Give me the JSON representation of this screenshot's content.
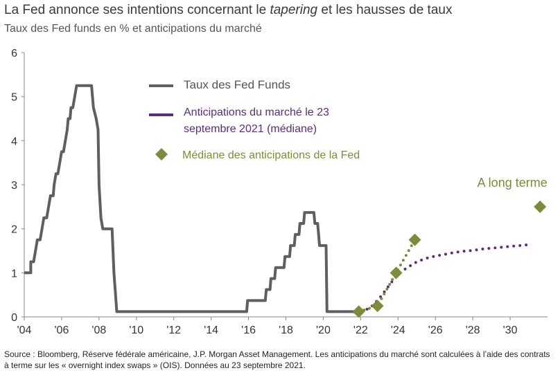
{
  "title": {
    "prefix": "La Fed annonce ses intentions concernant le ",
    "emph": "tapering",
    "suffix": " et les hausses de taux"
  },
  "subtitle": "Taux des Fed funds en % et anticipations du marché",
  "source": "Source : Bloomberg, Réserve fédérale américaine, J.P. Morgan Asset Management. Les anticipations du marché sont calculées à l’aide des contrats à terme sur les « overnight index swaps » (OIS). Données au 23 septembre 2021.",
  "colors": {
    "fed_funds": "#5f5f5f",
    "market": "#5a2d82",
    "fed_median": "#7f8a3a",
    "axis": "#888888"
  },
  "chart_data": {
    "type": "line",
    "xlim": [
      2004,
      2032
    ],
    "ylim": [
      0,
      6
    ],
    "x_ticks": [
      {
        "x": 2004,
        "label": "'04"
      },
      {
        "x": 2006,
        "label": "'06"
      },
      {
        "x": 2008,
        "label": "'08"
      },
      {
        "x": 2010,
        "label": "'10"
      },
      {
        "x": 2012,
        "label": "'12"
      },
      {
        "x": 2014,
        "label": "'14"
      },
      {
        "x": 2016,
        "label": "'16"
      },
      {
        "x": 2018,
        "label": "'18"
      },
      {
        "x": 2020,
        "label": "'20"
      },
      {
        "x": 2022,
        "label": "'22"
      },
      {
        "x": 2024,
        "label": "'24"
      },
      {
        "x": 2026,
        "label": "'26"
      },
      {
        "x": 2028,
        "label": "'28"
      },
      {
        "x": 2030,
        "label": "'30"
      }
    ],
    "y_ticks": [
      {
        "y": 0,
        "label": "0"
      },
      {
        "y": 1,
        "label": "1"
      },
      {
        "y": 2,
        "label": "2"
      },
      {
        "y": 3,
        "label": "3"
      },
      {
        "y": 4,
        "label": "4"
      },
      {
        "y": 5,
        "label": "5"
      },
      {
        "y": 6,
        "label": "6"
      }
    ],
    "series": [
      {
        "name": "Taux des Fed Funds",
        "style": "solid",
        "points": [
          [
            2004.0,
            1.0
          ],
          [
            2004.35,
            1.0
          ],
          [
            2004.35,
            1.25
          ],
          [
            2004.5,
            1.25
          ],
          [
            2004.6,
            1.5
          ],
          [
            2004.7,
            1.75
          ],
          [
            2004.85,
            1.75
          ],
          [
            2004.95,
            2.0
          ],
          [
            2005.05,
            2.25
          ],
          [
            2005.2,
            2.25
          ],
          [
            2005.3,
            2.5
          ],
          [
            2005.4,
            2.75
          ],
          [
            2005.55,
            2.75
          ],
          [
            2005.6,
            3.0
          ],
          [
            2005.7,
            3.25
          ],
          [
            2005.8,
            3.25
          ],
          [
            2005.9,
            3.5
          ],
          [
            2006.0,
            3.75
          ],
          [
            2006.1,
            3.75
          ],
          [
            2006.2,
            4.0
          ],
          [
            2006.3,
            4.25
          ],
          [
            2006.35,
            4.5
          ],
          [
            2006.45,
            4.5
          ],
          [
            2006.5,
            4.75
          ],
          [
            2006.6,
            4.75
          ],
          [
            2006.7,
            5.0
          ],
          [
            2006.8,
            5.25
          ],
          [
            2007.6,
            5.25
          ],
          [
            2007.7,
            4.75
          ],
          [
            2007.85,
            4.5
          ],
          [
            2007.95,
            4.25
          ],
          [
            2008.0,
            3.0
          ],
          [
            2008.1,
            2.25
          ],
          [
            2008.2,
            2.0
          ],
          [
            2008.7,
            2.0
          ],
          [
            2008.8,
            1.0
          ],
          [
            2008.95,
            0.12
          ],
          [
            2015.9,
            0.12
          ],
          [
            2015.95,
            0.37
          ],
          [
            2016.9,
            0.37
          ],
          [
            2016.95,
            0.62
          ],
          [
            2017.15,
            0.62
          ],
          [
            2017.2,
            0.87
          ],
          [
            2017.4,
            0.87
          ],
          [
            2017.45,
            1.12
          ],
          [
            2017.9,
            1.12
          ],
          [
            2017.95,
            1.37
          ],
          [
            2018.2,
            1.37
          ],
          [
            2018.25,
            1.62
          ],
          [
            2018.45,
            1.62
          ],
          [
            2018.5,
            1.87
          ],
          [
            2018.7,
            1.87
          ],
          [
            2018.75,
            2.12
          ],
          [
            2018.95,
            2.12
          ],
          [
            2019.0,
            2.37
          ],
          [
            2019.5,
            2.37
          ],
          [
            2019.55,
            2.12
          ],
          [
            2019.7,
            2.12
          ],
          [
            2019.75,
            1.87
          ],
          [
            2019.8,
            1.62
          ],
          [
            2020.15,
            1.62
          ],
          [
            2020.2,
            0.12
          ],
          [
            2021.7,
            0.12
          ]
        ]
      },
      {
        "name": "Anticipations du marché le 23 septembre 2021 (médiane)",
        "style": "dotted",
        "points": [
          [
            2021.7,
            0.1
          ],
          [
            2022.0,
            0.12
          ],
          [
            2022.5,
            0.2
          ],
          [
            2023.0,
            0.42
          ],
          [
            2023.5,
            0.7
          ],
          [
            2024.0,
            0.98
          ],
          [
            2024.5,
            1.12
          ],
          [
            2025.0,
            1.25
          ],
          [
            2025.5,
            1.33
          ],
          [
            2026.0,
            1.38
          ],
          [
            2026.5,
            1.42
          ],
          [
            2027.0,
            1.46
          ],
          [
            2027.5,
            1.49
          ],
          [
            2028.0,
            1.51
          ],
          [
            2028.5,
            1.54
          ],
          [
            2029.0,
            1.56
          ],
          [
            2029.5,
            1.58
          ],
          [
            2030.0,
            1.6
          ],
          [
            2030.5,
            1.62
          ],
          [
            2031.0,
            1.64
          ]
        ]
      },
      {
        "name": "Médiane des anticipations de la Fed",
        "style": "markers",
        "connector": "dotted",
        "points": [
          [
            2021.9,
            0.12
          ],
          [
            2022.9,
            0.25
          ],
          [
            2023.9,
            1.0
          ],
          [
            2024.9,
            1.75
          ]
        ]
      }
    ],
    "long_term": {
      "label": "A long terme",
      "x": 2031.6,
      "y": 2.5
    },
    "legend": {
      "placement": "top-center",
      "items": [
        {
          "label": "Taux des Fed Funds",
          "kind": "line"
        },
        {
          "label_lines": [
            "Anticipations du marché le 23",
            "septembre 2021 (médiane)"
          ],
          "kind": "dotted-line"
        },
        {
          "label": "Médiane des anticipations de la Fed",
          "kind": "diamond"
        }
      ]
    },
    "grid": false
  }
}
